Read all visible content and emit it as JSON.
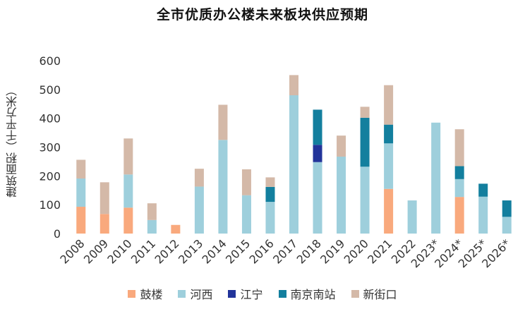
{
  "chart_data": {
    "type": "bar",
    "stacked": true,
    "title": "全市优质办公楼未来板块供应预期",
    "xlabel": "",
    "ylabel": "建筑面积（千平方米）",
    "ylim": [
      0,
      600
    ],
    "yticks": [
      0,
      100,
      200,
      300,
      400,
      500,
      600
    ],
    "grid": false,
    "legend_position": "bottom",
    "categories": [
      "2008",
      "2009",
      "2010",
      "2011",
      "2012",
      "2013",
      "2014",
      "2015",
      "2016",
      "2017",
      "2018",
      "2019",
      "2020",
      "2021",
      "2022",
      "2023*",
      "2024*",
      "2025*",
      "2026*"
    ],
    "series": [
      {
        "name": "鼓楼",
        "color": "#F9A97D",
        "values": [
          93,
          68,
          90,
          0,
          30,
          0,
          0,
          0,
          0,
          0,
          0,
          0,
          0,
          155,
          0,
          0,
          127,
          0,
          0
        ]
      },
      {
        "name": "河西",
        "color": "#9ECFDC",
        "values": [
          98,
          0,
          115,
          47,
          0,
          163,
          325,
          133,
          110,
          480,
          248,
          267,
          232,
          158,
          115,
          385,
          62,
          128,
          58
        ]
      },
      {
        "name": "江宁",
        "color": "#22349A",
        "values": [
          0,
          0,
          0,
          0,
          0,
          0,
          0,
          0,
          0,
          0,
          60,
          0,
          0,
          0,
          0,
          0,
          0,
          0,
          0
        ]
      },
      {
        "name": "南京南站",
        "color": "#137F9E",
        "values": [
          0,
          0,
          0,
          0,
          0,
          0,
          0,
          0,
          52,
          0,
          122,
          0,
          170,
          65,
          0,
          0,
          45,
          45,
          57
        ]
      },
      {
        "name": "新街口",
        "color": "#D4B9A8",
        "values": [
          65,
          110,
          125,
          58,
          0,
          62,
          122,
          90,
          33,
          70,
          0,
          73,
          38,
          137,
          0,
          0,
          128,
          0,
          0
        ]
      }
    ]
  }
}
